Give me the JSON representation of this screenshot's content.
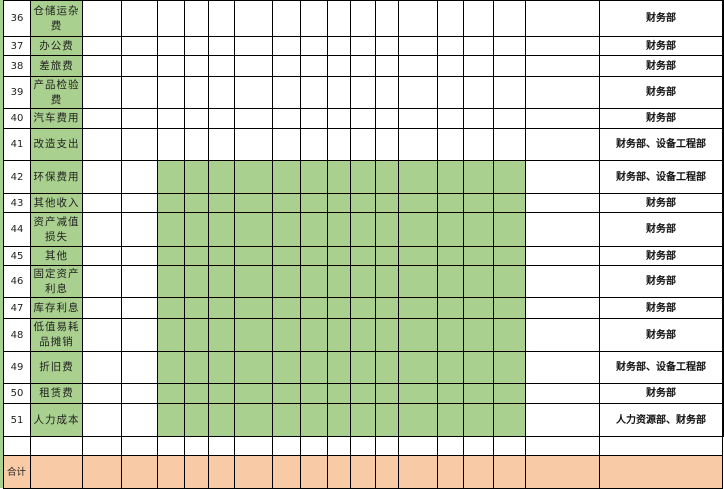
{
  "colors": {
    "fill_green": "#a9d08e",
    "total_orange": "#f8cba6",
    "grid": "#000000"
  },
  "rows": [
    {
      "no": "36",
      "name": "仓储运杂费",
      "dept": "财务部",
      "green_data": false,
      "green_last": false
    },
    {
      "no": "37",
      "name": "办公费",
      "dept": "财务部",
      "green_data": false,
      "green_last": false
    },
    {
      "no": "38",
      "name": "差旅费",
      "dept": "财务部",
      "green_data": false,
      "green_last": false
    },
    {
      "no": "39",
      "name": "产品检验费",
      "dept": "财务部",
      "green_data": false,
      "green_last": false
    },
    {
      "no": "40",
      "name": "汽车费用",
      "dept": "财务部",
      "green_data": false,
      "green_last": false
    },
    {
      "no": "41",
      "name": "改造支出",
      "dept": "财务部、设备工程部",
      "green_data": false,
      "green_last": false
    },
    {
      "no": "42",
      "name": "环保费用",
      "dept": "财务部、设备工程部",
      "green_data": true,
      "green_last": true
    },
    {
      "no": "43",
      "name": "其他收入",
      "dept": "财务部",
      "green_data": true,
      "green_last": true
    },
    {
      "no": "44",
      "name": "资产减值损失",
      "dept": "财务部",
      "green_data": true,
      "green_last": true
    },
    {
      "no": "45",
      "name": "其他",
      "dept": "财务部",
      "green_data": true,
      "green_last": true
    },
    {
      "no": "46",
      "name": "固定资产利息",
      "dept": "财务部",
      "green_data": true,
      "green_last": true
    },
    {
      "no": "47",
      "name": "库存利息",
      "dept": "财务部",
      "green_data": true,
      "green_last": true
    },
    {
      "no": "48",
      "name": "低值易耗品摊销",
      "dept": "财务部",
      "green_data": true,
      "green_last": true
    },
    {
      "no": "49",
      "name": "折旧费",
      "dept": "财务部、设备工程部",
      "green_data": true,
      "green_last": true
    },
    {
      "no": "50",
      "name": "租赁费",
      "dept": "财务部",
      "green_data": true,
      "green_last": true
    },
    {
      "no": "51",
      "name": "人力成本",
      "dept": "人力资源部、财务部",
      "green_data": true,
      "green_last": true
    }
  ],
  "total_label": "合计"
}
